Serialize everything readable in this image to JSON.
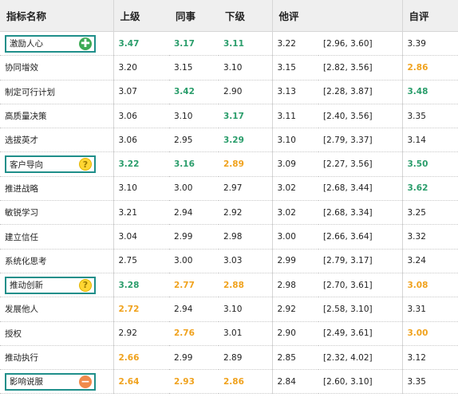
{
  "header": {
    "indicator": "指标名称",
    "superior": "上级",
    "peer": "同事",
    "subordinate": "下级",
    "others": "他评",
    "self": "自评"
  },
  "colors": {
    "green": "#2a9d6b",
    "orange": "#f0a21d",
    "tag_border": "#1f8f8a"
  },
  "rows": [
    {
      "name": "激励人心",
      "icon": "plus-icon",
      "sup": "3.47",
      "sup_c": "green",
      "peer": "3.17",
      "peer_c": "green",
      "sub": "3.11",
      "sub_c": "green",
      "others": "3.22",
      "ci": "[2.96, 3.60]",
      "self": "3.39",
      "self_c": "normal"
    },
    {
      "name": "协同增效",
      "icon": "",
      "sup": "3.20",
      "sup_c": "normal",
      "peer": "3.15",
      "peer_c": "normal",
      "sub": "3.10",
      "sub_c": "normal",
      "others": "3.15",
      "ci": "[2.82, 3.56]",
      "self": "2.86",
      "self_c": "orange"
    },
    {
      "name": "制定可行计划",
      "icon": "",
      "sup": "3.07",
      "sup_c": "normal",
      "peer": "3.42",
      "peer_c": "green",
      "sub": "2.90",
      "sub_c": "normal",
      "others": "3.13",
      "ci": "[2.28, 3.87]",
      "self": "3.48",
      "self_c": "green"
    },
    {
      "name": "高质量决策",
      "icon": "",
      "sup": "3.06",
      "sup_c": "normal",
      "peer": "3.10",
      "peer_c": "normal",
      "sub": "3.17",
      "sub_c": "green",
      "others": "3.11",
      "ci": "[2.40, 3.56]",
      "self": "3.35",
      "self_c": "normal"
    },
    {
      "name": "选拔英才",
      "icon": "",
      "sup": "3.06",
      "sup_c": "normal",
      "peer": "2.95",
      "peer_c": "normal",
      "sub": "3.29",
      "sub_c": "green",
      "others": "3.10",
      "ci": "[2.79, 3.37]",
      "self": "3.14",
      "self_c": "normal"
    },
    {
      "name": "客户导向",
      "icon": "question-icon",
      "sup": "3.22",
      "sup_c": "green",
      "peer": "3.16",
      "peer_c": "green",
      "sub": "2.89",
      "sub_c": "orange",
      "others": "3.09",
      "ci": "[2.27, 3.56]",
      "self": "3.50",
      "self_c": "green"
    },
    {
      "name": "推进战略",
      "icon": "",
      "sup": "3.10",
      "sup_c": "normal",
      "peer": "3.00",
      "peer_c": "normal",
      "sub": "2.97",
      "sub_c": "normal",
      "others": "3.02",
      "ci": "[2.68, 3.44]",
      "self": "3.62",
      "self_c": "green"
    },
    {
      "name": "敏锐学习",
      "icon": "",
      "sup": "3.21",
      "sup_c": "normal",
      "peer": "2.94",
      "peer_c": "normal",
      "sub": "2.92",
      "sub_c": "normal",
      "others": "3.02",
      "ci": "[2.68, 3.34]",
      "self": "3.25",
      "self_c": "normal"
    },
    {
      "name": "建立信任",
      "icon": "",
      "sup": "3.04",
      "sup_c": "normal",
      "peer": "2.99",
      "peer_c": "normal",
      "sub": "2.98",
      "sub_c": "normal",
      "others": "3.00",
      "ci": "[2.66, 3.64]",
      "self": "3.32",
      "self_c": "normal"
    },
    {
      "name": "系统化思考",
      "icon": "",
      "sup": "2.75",
      "sup_c": "normal",
      "peer": "3.00",
      "peer_c": "normal",
      "sub": "3.03",
      "sub_c": "normal",
      "others": "2.99",
      "ci": "[2.79, 3.17]",
      "self": "3.24",
      "self_c": "normal"
    },
    {
      "name": "推动创新",
      "icon": "question-icon",
      "sup": "3.28",
      "sup_c": "green",
      "peer": "2.77",
      "peer_c": "orange",
      "sub": "2.88",
      "sub_c": "orange",
      "others": "2.98",
      "ci": "[2.70, 3.61]",
      "self": "3.08",
      "self_c": "orange"
    },
    {
      "name": "发展他人",
      "icon": "",
      "sup": "2.72",
      "sup_c": "orange",
      "peer": "2.94",
      "peer_c": "normal",
      "sub": "3.10",
      "sub_c": "normal",
      "others": "2.92",
      "ci": "[2.58, 3.10]",
      "self": "3.31",
      "self_c": "normal"
    },
    {
      "name": "授权",
      "icon": "",
      "sup": "2.92",
      "sup_c": "normal",
      "peer": "2.76",
      "peer_c": "orange",
      "sub": "3.01",
      "sub_c": "normal",
      "others": "2.90",
      "ci": "[2.49, 3.61]",
      "self": "3.00",
      "self_c": "orange"
    },
    {
      "name": "推动执行",
      "icon": "",
      "sup": "2.66",
      "sup_c": "orange",
      "peer": "2.99",
      "peer_c": "normal",
      "sub": "2.89",
      "sub_c": "normal",
      "others": "2.85",
      "ci": "[2.32, 4.02]",
      "self": "3.12",
      "self_c": "normal"
    },
    {
      "name": "影响说服",
      "icon": "minus-icon",
      "sup": "2.64",
      "sup_c": "orange",
      "peer": "2.93",
      "peer_c": "orange",
      "sub": "2.86",
      "sub_c": "orange",
      "others": "2.84",
      "ci": "[2.60, 3.10]",
      "self": "3.35",
      "self_c": "normal"
    }
  ]
}
